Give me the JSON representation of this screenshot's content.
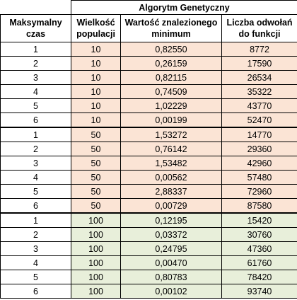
{
  "table": {
    "super_header": "Algorytm Genetyczny",
    "columns": [
      "Maksymalny czas",
      "Wielkość populacji",
      "Wartość znalezionego minimum",
      "Liczba odwołań do funkcji"
    ],
    "shading_colors": {
      "pop_10": "#fbe4d5",
      "pop_50": "#fbe4d5",
      "pop_100": "#e8efda"
    },
    "rows": [
      [
        "1",
        "10",
        "0,82550",
        "8772"
      ],
      [
        "2",
        "10",
        "0,26159",
        "17590"
      ],
      [
        "3",
        "10",
        "0,82115",
        "26534"
      ],
      [
        "4",
        "10",
        "0,74509",
        "35322"
      ],
      [
        "5",
        "10",
        "1,02229",
        "43770"
      ],
      [
        "6",
        "10",
        "0,00199",
        "52470"
      ],
      [
        "1",
        "50",
        "1,53272",
        "14770"
      ],
      [
        "2",
        "50",
        "0,76142",
        "29360"
      ],
      [
        "3",
        "50",
        "1,53482",
        "42960"
      ],
      [
        "4",
        "50",
        "0,00562",
        "57480"
      ],
      [
        "5",
        "50",
        "2,88337",
        "72960"
      ],
      [
        "6",
        "50",
        "0,00729",
        "87580"
      ],
      [
        "1",
        "100",
        "0,12195",
        "15420"
      ],
      [
        "2",
        "100",
        "0,03372",
        "30760"
      ],
      [
        "3",
        "100",
        "0,24795",
        "47360"
      ],
      [
        "4",
        "100",
        "0,00470",
        "61760"
      ],
      [
        "5",
        "100",
        "0,80783",
        "78420"
      ],
      [
        "6",
        "100",
        "0,00102",
        "93740"
      ]
    ]
  }
}
